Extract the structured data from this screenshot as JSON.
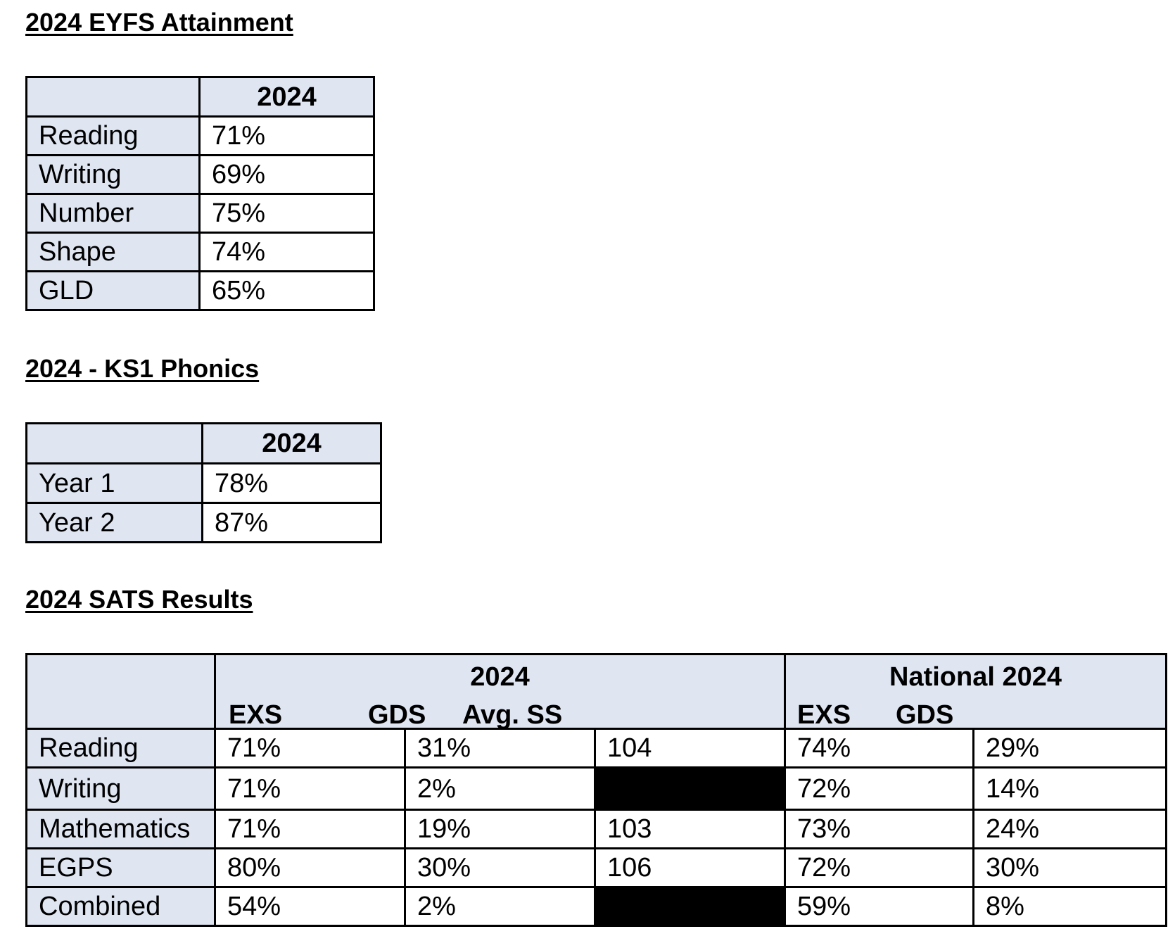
{
  "eyfs": {
    "heading": "2024 EYFS Attainment",
    "column_header": "2024",
    "rows": [
      {
        "label": "Reading",
        "value": "71%"
      },
      {
        "label": "Writing",
        "value": "69%"
      },
      {
        "label": "Number",
        "value": "75%"
      },
      {
        "label": "Shape",
        "value": "74%"
      },
      {
        "label": "GLD",
        "value": "65%"
      }
    ]
  },
  "phonics": {
    "heading": "2024 - KS1 Phonics",
    "column_header": "2024",
    "rows": [
      {
        "label": "Year 1",
        "value": "78%"
      },
      {
        "label": "Year 2",
        "value": "87%"
      }
    ]
  },
  "sats": {
    "heading": "2024 SATS Results",
    "group_2024": {
      "title": "2024",
      "exs": "EXS",
      "gds": "GDS",
      "avg_ss": "Avg. SS"
    },
    "group_national": {
      "title": "National 2024",
      "exs": "EXS",
      "gds": "GDS"
    },
    "rows": [
      {
        "label": "Reading",
        "exs": "71%",
        "gds": "31%",
        "avg_ss": "104",
        "nat_exs": "74%",
        "nat_gds": "29%"
      },
      {
        "label": "Writing",
        "exs": "71%",
        "gds": "2%",
        "avg_ss": null,
        "nat_exs": "72%",
        "nat_gds": "14%"
      },
      {
        "label": "Mathematics",
        "exs": "71%",
        "gds": "19%",
        "avg_ss": "103",
        "nat_exs": "73%",
        "nat_gds": "24%"
      },
      {
        "label": "EGPS",
        "exs": "80%",
        "gds": "30%",
        "avg_ss": "106",
        "nat_exs": "72%",
        "nat_gds": "30%"
      },
      {
        "label": "Combined",
        "exs": "54%",
        "gds": "2%",
        "avg_ss": null,
        "nat_exs": "59%",
        "nat_gds": "8%"
      }
    ]
  },
  "colors": {
    "label_fill": "#dfe6f2",
    "redacted_fill": "#000000"
  }
}
